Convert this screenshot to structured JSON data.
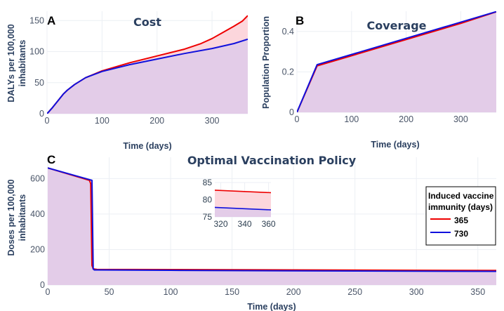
{
  "colors": {
    "red": "#ee0000",
    "blue": "#1010dd",
    "fill_common": "#e3cce8",
    "fill_diff": "#fcd6dc"
  },
  "legend": {
    "title_line1": "Induced vaccine",
    "title_line2": "immunity (days)",
    "items": [
      "365",
      "730"
    ]
  },
  "chart_data": [
    {
      "id": "A",
      "type": "area",
      "panel_letter": "A",
      "title": "Cost",
      "xlabel": "Time (days)",
      "ylabel_line1": "DALYs per 100,000",
      "ylabel_line2": "inhabitants",
      "xlim": [
        0,
        365
      ],
      "ylim": [
        0,
        165
      ],
      "xticks": [
        0,
        100,
        200,
        300
      ],
      "yticks": [
        0,
        50,
        100,
        150
      ],
      "series": [
        {
          "name": "365",
          "x": [
            0,
            10,
            20,
            30,
            37,
            50,
            70,
            100,
            150,
            200,
            250,
            280,
            300,
            320,
            340,
            355,
            365
          ],
          "y": [
            0,
            10,
            21,
            32,
            38,
            47,
            58,
            69,
            82,
            93,
            104,
            113,
            121,
            131,
            141,
            149,
            158
          ]
        },
        {
          "name": "730",
          "x": [
            0,
            10,
            20,
            30,
            37,
            50,
            70,
            100,
            150,
            200,
            250,
            300,
            340,
            365
          ],
          "y": [
            0,
            10,
            21,
            32,
            38,
            47,
            58,
            68,
            79,
            88,
            97,
            105,
            113,
            120
          ]
        }
      ]
    },
    {
      "id": "B",
      "type": "area",
      "panel_letter": "B",
      "title": "Coverage",
      "xlabel": "Time (days)",
      "ylabel_line1": "Population Proportion",
      "xlim": [
        0,
        365
      ],
      "ylim": [
        0,
        0.5
      ],
      "xticks": [
        0,
        100,
        200,
        300
      ],
      "yticks": [
        0,
        0.2,
        0.4
      ],
      "series": [
        {
          "name": "365",
          "x": [
            0,
            37,
            100,
            200,
            300,
            365
          ],
          "y": [
            0,
            0.23,
            0.28,
            0.36,
            0.44,
            0.497
          ]
        },
        {
          "name": "730",
          "x": [
            0,
            37,
            100,
            200,
            300,
            365
          ],
          "y": [
            0,
            0.236,
            0.286,
            0.366,
            0.446,
            0.498
          ]
        }
      ]
    },
    {
      "id": "C",
      "type": "area",
      "panel_letter": "C",
      "title": "Optimal Vaccination Policy",
      "xlabel": "Time (days)",
      "ylabel_line1": "Doses per 100,000",
      "ylabel_line2": "inhabitants",
      "xlim": [
        0,
        365
      ],
      "ylim": [
        0,
        720
      ],
      "xticks": [
        0,
        50,
        100,
        150,
        200,
        250,
        300,
        350
      ],
      "yticks": [
        0,
        200,
        400,
        600
      ],
      "series": [
        {
          "name": "365",
          "x": [
            0,
            34,
            35,
            36,
            37,
            38,
            40,
            100,
            200,
            300,
            365
          ],
          "y": [
            660,
            590,
            570,
            110,
            92,
            90,
            88,
            87,
            85,
            83,
            82
          ]
        },
        {
          "name": "730",
          "x": [
            0,
            36,
            37,
            38,
            40,
            100,
            200,
            300,
            365
          ],
          "y": [
            660,
            590,
            90,
            85,
            85,
            83,
            80,
            78,
            77
          ]
        }
      ],
      "inset": {
        "xlim": [
          315,
          362
        ],
        "ylim": [
          75,
          85
        ],
        "xticks": [
          320,
          340,
          360
        ],
        "yticks": [
          75,
          80,
          85
        ]
      }
    }
  ]
}
